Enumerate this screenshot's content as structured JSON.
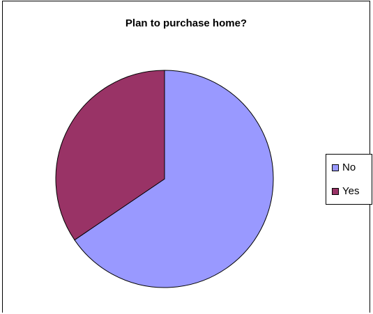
{
  "chart_data": {
    "type": "pie",
    "title": "Plan to purchase home?",
    "slices": [
      {
        "label": "No",
        "value": 65.5,
        "color": "#9999ff"
      },
      {
        "label": "Yes",
        "value": 34.5,
        "color": "#993366"
      }
    ],
    "start_angle_deg": 0,
    "direction": "clockwise",
    "legend_position": "right"
  }
}
